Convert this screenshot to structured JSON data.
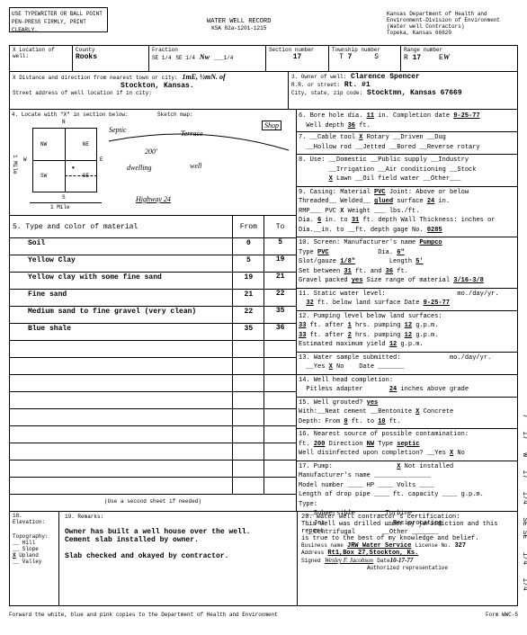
{
  "form": {
    "title": "WATER WELL RECORD",
    "subtitle": "KSA 82a-1201-1215",
    "agency1": "Kansas Department of Health and",
    "agency2": "Environment-Division of Environment",
    "agency3": "(Water well Contractors)",
    "agency4": "Topeka, Kansas 66620",
    "instruction": "USE TYPEWRITER OR BALL POINT PEN-PRESS FIRMLY, PRINT CLEARLY.",
    "footer": "Forward the white, blue and pink copies to the Department of Health and Environment",
    "form_no": "Form WWC-5"
  },
  "loc": {
    "county": "Rooks",
    "fraction": "Nw",
    "se14a": "SE 1/4",
    "se14b": "SE 1/4",
    "blank14": "___1/4",
    "section": "17",
    "township": "7",
    "range": "17",
    "range_dir": "W",
    "distance": "1mE, ½mN. of",
    "nearest": "Stockton, Kansas.",
    "street": ""
  },
  "owner": {
    "name": "Clarence Spencer",
    "rr": "Rt. #1",
    "city": "Stocktmn, Kansas 67669"
  },
  "sketch": {
    "labels": [
      "Septic",
      "Terrace",
      "Shop",
      "shop",
      "200'",
      "dwelling",
      "well",
      "Highway 24"
    ],
    "nw": "NW",
    "ne": "NE",
    "sw": "SW",
    "se": "SE",
    "n": "N",
    "s": "S",
    "e": "E",
    "w": "W",
    "mile": "1 Mile"
  },
  "materials": {
    "header_type": "5. Type and color of material",
    "header_from": "From",
    "header_to": "To",
    "rows": [
      {
        "desc": "Soil",
        "from": "0",
        "to": "5"
      },
      {
        "desc": "Yellow Clay",
        "from": "5",
        "to": "19"
      },
      {
        "desc": "Yellow clay with some fine sand",
        "from": "19",
        "to": "21"
      },
      {
        "desc": "Fine sand",
        "from": "21",
        "to": "22"
      },
      {
        "desc": "Medium sand to fine gravel (very clean)",
        "from": "22",
        "to": "35"
      },
      {
        "desc": "Blue shale",
        "from": "35",
        "to": "36"
      },
      {
        "desc": "",
        "from": "",
        "to": ""
      },
      {
        "desc": "",
        "from": "",
        "to": ""
      },
      {
        "desc": "",
        "from": "",
        "to": ""
      },
      {
        "desc": "",
        "from": "",
        "to": ""
      },
      {
        "desc": "",
        "from": "",
        "to": ""
      },
      {
        "desc": "",
        "from": "",
        "to": ""
      },
      {
        "desc": "",
        "from": "",
        "to": ""
      },
      {
        "desc": "",
        "from": "",
        "to": ""
      },
      {
        "desc": "",
        "from": "",
        "to": ""
      }
    ],
    "second_sheet": "(Use a second sheet if needed)"
  },
  "bore": {
    "dia": "11",
    "date": "9-25-77",
    "depth": "36"
  },
  "sec7": {
    "rotary_x": "X",
    "cable": "Cable tool",
    "rotary": "Rotary",
    "driven": "Driven",
    "dug": "Dug",
    "hollow": "Hollow rod",
    "jetted": "Jetted",
    "bored": "Bored",
    "reverse": "Reverse rotary"
  },
  "sec8": {
    "lawn_x": "X",
    "dom": "Domestic",
    "pub": "Public supply",
    "ind": "Industry",
    "irr": "Irrigation",
    "ac": "Air conditioning",
    "stock": "Stock",
    "lawn": "Lawn",
    "oil": "Oil field water",
    "other": "Other"
  },
  "sec9": {
    "material": "PVC",
    "joint": "glued",
    "surface": "24",
    "rmp": "PVC",
    "weight": "",
    "dia1": "6",
    "dia2": "31",
    "wall": "Wall Thickness: inches or",
    "gage": "0285"
  },
  "sec10": {
    "mfg": "Pumpco",
    "type": "PVC",
    "dia": "6\"",
    "slot": "1/8\"",
    "length": "5'",
    "set1": "31",
    "set2": "36",
    "gravel": "yes",
    "size": "3/16-3/8"
  },
  "sec11": {
    "level": "32",
    "date": "9-25-77"
  },
  "sec12": {
    "ft1": "33",
    "hrs1": "1",
    "gpm1": "12",
    "ft2": "33",
    "hrs2": "2",
    "gpm2": "12",
    "est": "12"
  },
  "sec13": {
    "no_x": "X"
  },
  "sec14": {
    "inches": "24"
  },
  "sec15": {
    "grouted": "yes",
    "neat": "Neat cement",
    "bent": "Bentonite",
    "conc": "Concrete",
    "conc_x": "X",
    "from": "0",
    "to": "10"
  },
  "sec16": {
    "ft": "200",
    "dir": "NW",
    "type": "septic",
    "dis_yes": "X",
    "dis_no": ""
  },
  "sec17": {
    "not_x": "X",
    "sub": "Submersible",
    "turb": "Turbine",
    "jet": "Jet",
    "recip": "Reciprocating",
    "cent": "Centrifugal",
    "other": "Other"
  },
  "elev": {
    "hill": "Hill",
    "slope": "Slope",
    "upland": "Upland",
    "valley": "Valley",
    "upland_x": "X"
  },
  "remarks": {
    "l1": "Owner has built a well house over the well.",
    "l2": "Cement slab installed by owner.",
    "l3": "Slab checked and okayed by contractor."
  },
  "sec20": {
    "cert1": "20. Water well contractor's certification:",
    "cert2": "This well was drilled under my jurisdiction and this report",
    "cert3": "is true to the best of my knowledge and belief.",
    "business": "JRW Water Service",
    "license": "327",
    "address": "Rt1,Box 27,Stockton, Ks.",
    "date": "10-17-77",
    "rep": "Authorized representative"
  }
}
